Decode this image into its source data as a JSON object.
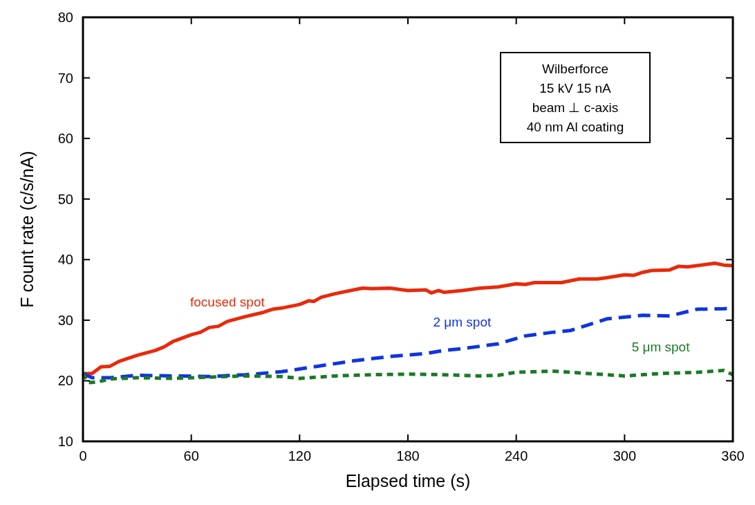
{
  "chart_data": {
    "type": "line",
    "xlabel": "Elapsed time (s)",
    "ylabel": "F count rate (c/s/nA)",
    "xlim": [
      0,
      360
    ],
    "xticks": [
      0,
      60,
      120,
      180,
      240,
      300,
      360
    ],
    "ylim": [
      10,
      80
    ],
    "yticks": [
      10,
      20,
      30,
      40,
      50,
      60,
      70,
      80
    ],
    "grid": false,
    "marker": "none",
    "annotations": [
      "Wilberforce",
      "15 kV 15 nA",
      "beam ⊥ c-axis",
      "40 nm Al coating"
    ],
    "series": [
      {
        "name": "focused spot",
        "color": "#e82a0c",
        "line_style": "solid",
        "x": [
          0,
          5,
          10,
          15,
          20,
          30,
          40,
          45,
          50,
          60,
          65,
          70,
          75,
          80,
          90,
          100,
          105,
          110,
          120,
          125,
          128,
          132,
          140,
          150,
          155,
          160,
          170,
          180,
          190,
          193,
          197,
          200,
          210,
          220,
          230,
          240,
          245,
          250,
          265,
          275,
          285,
          290,
          300,
          305,
          310,
          315,
          325,
          330,
          335,
          340,
          350,
          355,
          360
        ],
        "values": [
          21.2,
          21.2,
          22.3,
          22.4,
          23.2,
          24.2,
          25.0,
          25.6,
          26.5,
          27.6,
          28.0,
          28.8,
          29.0,
          29.8,
          30.6,
          31.3,
          31.8,
          32.0,
          32.6,
          33.2,
          33.1,
          33.8,
          34.4,
          35.0,
          35.3,
          35.2,
          35.3,
          34.9,
          35.0,
          34.5,
          34.9,
          34.6,
          34.9,
          35.3,
          35.5,
          36.0,
          35.9,
          36.2,
          36.2,
          36.8,
          36.8,
          37.0,
          37.5,
          37.4,
          37.9,
          38.2,
          38.3,
          38.9,
          38.8,
          39.0,
          39.4,
          39.1,
          39.0
        ]
      },
      {
        "name": "2 μm spot",
        "color": "#1034e0",
        "line_style": "dashed",
        "x": [
          0,
          5,
          15,
          30,
          50,
          70,
          90,
          110,
          130,
          150,
          170,
          190,
          200,
          210,
          230,
          245,
          260,
          270,
          290,
          310,
          325,
          340,
          355,
          360
        ],
        "values": [
          21.2,
          20.5,
          20.5,
          20.9,
          20.8,
          20.7,
          21.0,
          21.5,
          22.4,
          23.3,
          24.0,
          24.5,
          25.0,
          25.3,
          26.1,
          27.4,
          28.0,
          28.3,
          30.2,
          30.8,
          30.7,
          31.8,
          31.9,
          32.0
        ]
      },
      {
        "name": "5 μm spot",
        "color": "#1a7a25",
        "line_style": "dotted",
        "x": [
          0,
          3,
          8,
          15,
          30,
          50,
          70,
          90,
          110,
          120,
          140,
          160,
          180,
          200,
          220,
          230,
          240,
          260,
          280,
          300,
          320,
          340,
          355,
          360
        ],
        "values": [
          21.2,
          19.7,
          19.8,
          20.3,
          20.5,
          20.4,
          20.6,
          20.8,
          20.7,
          20.4,
          20.8,
          21.0,
          21.1,
          21.0,
          20.8,
          20.9,
          21.4,
          21.6,
          21.2,
          20.8,
          21.2,
          21.4,
          21.7,
          21.0
        ]
      }
    ]
  }
}
